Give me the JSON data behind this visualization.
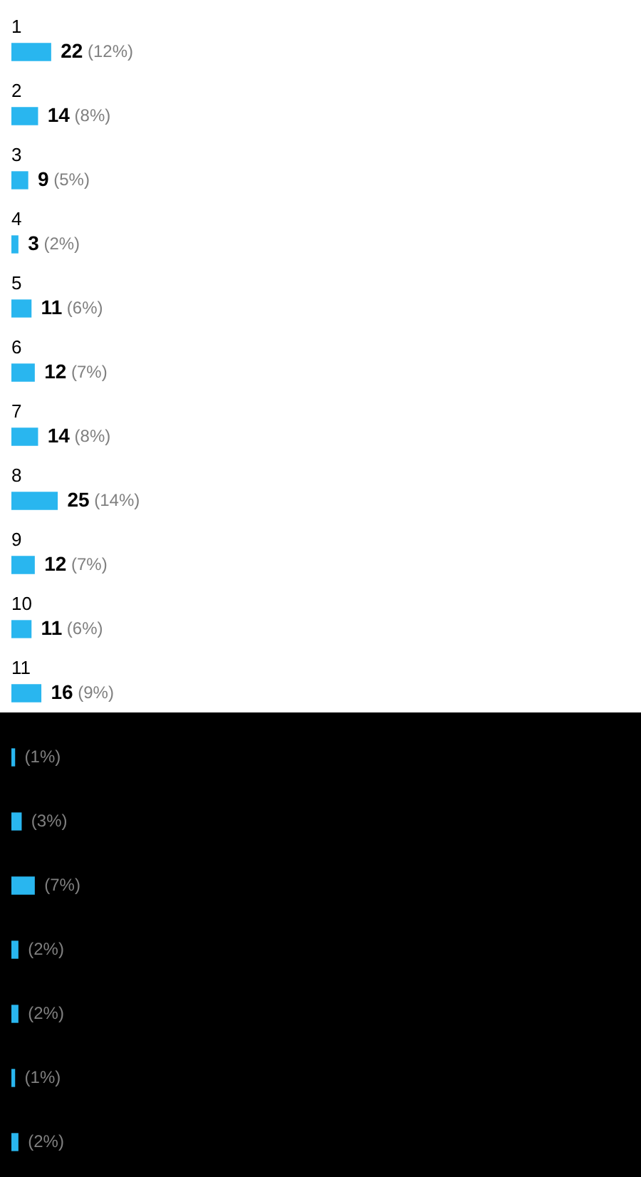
{
  "chart_data": {
    "type": "bar",
    "orientation": "horizontal",
    "categories": [
      "1",
      "2",
      "3",
      "4",
      "5",
      "6",
      "7",
      "8",
      "9",
      "10",
      "11",
      null,
      null,
      null,
      null,
      null,
      null,
      null
    ],
    "values": [
      12,
      8,
      5,
      2,
      6,
      7,
      8,
      14,
      7,
      6,
      9,
      1,
      3,
      7,
      2,
      2,
      1,
      2
    ],
    "value_labels": [
      "22 (12%)",
      "14 (8%)",
      "9 (5%)",
      "3 (2%)",
      "11 (6%)",
      "12 (7%)",
      "14 (8%)",
      "25 (14%)",
      "12 (7%)",
      "11 (6%)",
      "16 (9%)",
      "(1%)",
      "(3%)",
      "(7%)",
      "(2%)",
      "(2%)",
      "(1%)",
      "(2%)"
    ],
    "color": "#29b6ef",
    "tick_labels": false,
    "legend": false
  }
}
